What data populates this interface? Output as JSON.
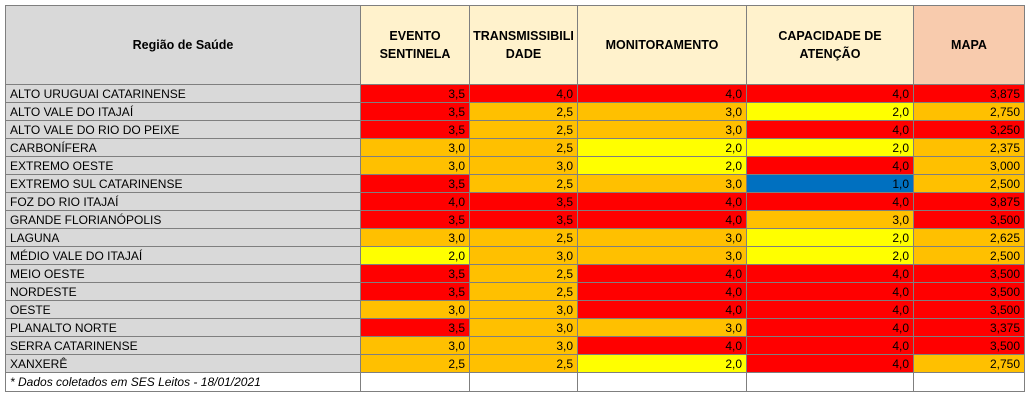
{
  "headers": {
    "region": "Região de Saúde",
    "evento": "EVENTO SENTINELA",
    "transmissibilidade": "TRANSMISSIBILIDADE",
    "monitoramento": "MONITORAMENTO",
    "capacidade": "CAPACIDADE DE ATENÇÃO",
    "mapa": "MAPA"
  },
  "colors": {
    "red": "#ff0000",
    "orange": "#ffc000",
    "yellow": "#ffff00",
    "blue": "#0070c0"
  },
  "rows": [
    {
      "region": "ALTO URUGUAI CATARINENSE",
      "evento": "3,5",
      "trans": "4,0",
      "monit": "4,0",
      "capac": "4,0",
      "mapa": "3,875",
      "c": [
        "r",
        "r",
        "r",
        "r",
        "r"
      ]
    },
    {
      "region": "ALTO VALE DO ITAJAÍ",
      "evento": "3,5",
      "trans": "2,5",
      "monit": "3,0",
      "capac": "2,0",
      "mapa": "2,750",
      "c": [
        "r",
        "o",
        "o",
        "y",
        "o"
      ]
    },
    {
      "region": "ALTO VALE DO RIO DO PEIXE",
      "evento": "3,5",
      "trans": "2,5",
      "monit": "3,0",
      "capac": "4,0",
      "mapa": "3,250",
      "c": [
        "r",
        "o",
        "o",
        "r",
        "r"
      ]
    },
    {
      "region": "CARBONÍFERA",
      "evento": "3,0",
      "trans": "2,5",
      "monit": "2,0",
      "capac": "2,0",
      "mapa": "2,375",
      "c": [
        "o",
        "o",
        "y",
        "y",
        "o"
      ]
    },
    {
      "region": "EXTREMO OESTE",
      "evento": "3,0",
      "trans": "3,0",
      "monit": "2,0",
      "capac": "4,0",
      "mapa": "3,000",
      "c": [
        "o",
        "o",
        "y",
        "r",
        "o"
      ]
    },
    {
      "region": "EXTREMO SUL CATARINENSE",
      "evento": "3,5",
      "trans": "2,5",
      "monit": "3,0",
      "capac": "1,0",
      "mapa": "2,500",
      "c": [
        "r",
        "o",
        "o",
        "b",
        "o"
      ]
    },
    {
      "region": "FOZ DO RIO ITAJAÍ",
      "evento": "4,0",
      "trans": "3,5",
      "monit": "4,0",
      "capac": "4,0",
      "mapa": "3,875",
      "c": [
        "r",
        "r",
        "r",
        "r",
        "r"
      ]
    },
    {
      "region": "GRANDE FLORIANÓPOLIS",
      "evento": "3,5",
      "trans": "3,5",
      "monit": "4,0",
      "capac": "3,0",
      "mapa": "3,500",
      "c": [
        "r",
        "r",
        "r",
        "o",
        "r"
      ]
    },
    {
      "region": "LAGUNA",
      "evento": "3,0",
      "trans": "2,5",
      "monit": "3,0",
      "capac": "2,0",
      "mapa": "2,625",
      "c": [
        "o",
        "o",
        "o",
        "y",
        "o"
      ]
    },
    {
      "region": "MÉDIO VALE DO ITAJAÍ",
      "evento": "2,0",
      "trans": "3,0",
      "monit": "3,0",
      "capac": "2,0",
      "mapa": "2,500",
      "c": [
        "y",
        "o",
        "o",
        "y",
        "o"
      ]
    },
    {
      "region": "MEIO OESTE",
      "evento": "3,5",
      "trans": "2,5",
      "monit": "4,0",
      "capac": "4,0",
      "mapa": "3,500",
      "c": [
        "r",
        "o",
        "r",
        "r",
        "r"
      ]
    },
    {
      "region": "NORDESTE",
      "evento": "3,5",
      "trans": "2,5",
      "monit": "4,0",
      "capac": "4,0",
      "mapa": "3,500",
      "c": [
        "r",
        "o",
        "r",
        "r",
        "r"
      ]
    },
    {
      "region": "OESTE",
      "evento": "3,0",
      "trans": "3,0",
      "monit": "4,0",
      "capac": "4,0",
      "mapa": "3,500",
      "c": [
        "o",
        "o",
        "r",
        "r",
        "r"
      ]
    },
    {
      "region": "PLANALTO NORTE",
      "evento": "3,5",
      "trans": "3,0",
      "monit": "3,0",
      "capac": "4,0",
      "mapa": "3,375",
      "c": [
        "r",
        "o",
        "o",
        "r",
        "r"
      ]
    },
    {
      "region": "SERRA CATARINENSE",
      "evento": "3,0",
      "trans": "3,0",
      "monit": "4,0",
      "capac": "4,0",
      "mapa": "3,500",
      "c": [
        "o",
        "o",
        "r",
        "r",
        "r"
      ]
    },
    {
      "region": "XANXERÊ",
      "evento": "2,5",
      "trans": "2,5",
      "monit": "2,0",
      "capac": "4,0",
      "mapa": "2,750",
      "c": [
        "o",
        "o",
        "y",
        "r",
        "o"
      ]
    }
  ],
  "footnote": "* Dados coletados em SES Leitos - 18/01/2021"
}
